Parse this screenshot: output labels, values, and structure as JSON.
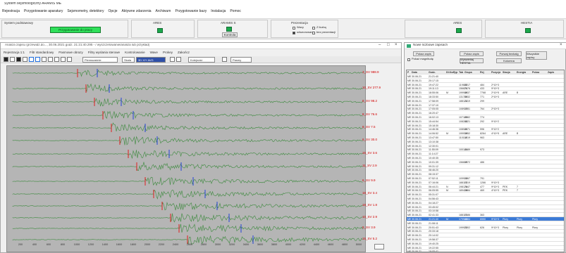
{
  "app": {
    "title": "System sejsmologiczny ARAMIS ME",
    "menu": [
      "Rejestracja",
      "Przygotowanie aparatury",
      "Sejsmometry, detektory",
      "Opcje",
      "Aktywne zdarzenia",
      "Archiwum",
      "Przygotowanie bazy",
      "Instalacja",
      "Pomoc"
    ]
  },
  "top_panel": {
    "groups": [
      {
        "title": "System podstawowy",
        "status": "Przygotowanie do pracy"
      },
      {
        "title": "ARES",
        "button": ""
      },
      {
        "title": "ARAMIS S",
        "button": "Kontrola"
      },
      {
        "title": "Prezentacja",
        "options": [
          "Wavy",
          "Z liczbą",
          "odwzorowanie",
          "bez prezentacji"
        ]
      },
      {
        "title": "ARES",
        "button": ""
      },
      {
        "title": "HESTIA",
        "button": ""
      }
    ]
  },
  "seismic_window": {
    "title": "Analiza zapisu (przewidz.do..., 30.06.2021 godz. 21:21:40.295 - / wyszczelowanie/analiza lub przyklad)",
    "menu": [
      "Rejestracja 1:1",
      "Filtr standardowy",
      "Pasmowe obrazy",
      "Filtry wyslania sterowe",
      "Kontrolowanie",
      "Wave",
      "Prokey",
      "Zakończ"
    ],
    "toolbar": {
      "field1": "Pierwszaśnie",
      "field2": "Skala",
      "field3": "3D X/Y AVG",
      "field4": "Kolejność",
      "field5": "Pasmy"
    },
    "traces": [
      {
        "label": "3_SV 988.9",
        "y": 42
      },
      {
        "label": "10_SV 277.9",
        "y": 64
      },
      {
        "label": "8_SV 98.2",
        "y": 83
      },
      {
        "label": "8_SV 76.6",
        "y": 102
      },
      {
        "label": "8_SV 7.5",
        "y": 120
      },
      {
        "label": "6_SV 30.0",
        "y": 138
      },
      {
        "label": "15_SV 3.6",
        "y": 157
      },
      {
        "label": "11_SV 2.9",
        "y": 175
      },
      {
        "label": "6_SV 9.9",
        "y": 196
      },
      {
        "label": "18_SV 3.4",
        "y": 214
      },
      {
        "label": "18_SV 1.8",
        "y": 231
      },
      {
        "label": "10_SV 2.9",
        "y": 248
      },
      {
        "label": "9_SV 3.9",
        "y": 263
      },
      {
        "label": "16_SV 5.2",
        "y": 279
      }
    ],
    "xaxis": [
      "200",
      "400",
      "600",
      "800",
      "1000",
      "1200",
      "1400",
      "1600",
      "1800",
      "2000",
      "2200",
      "2400",
      "2600",
      "2800",
      "3000",
      "3200",
      "3400",
      "3600",
      "3800",
      "4000",
      "4200",
      "4400",
      "4600",
      "4800",
      "5000"
    ]
  },
  "list_window": {
    "title": "Nowe liczbowe zapisach",
    "buttons": [
      "Pokaz zapis",
      "Pokaz zapis",
      "Porwaj bezkalg",
      "Pokaz na zapadre",
      "Pokaz zapis"
    ],
    "checkboxes": [
      "Pokaż magnitudę",
      "Wyświetlaj HESTIA",
      "Kolumna"
    ],
    "checkbox_right": "Wszystkie zapisy",
    "headers": [
      "P",
      "Data",
      "Godz.",
      "Dł.Kod",
      "Typ",
      "Tab",
      "Grupa",
      "Rej",
      "Pozycja",
      "Stacja",
      "Energia",
      "Pokaz",
      "Zapis"
    ],
    "rows": [
      [
        "ME",
        "30.06.21",
        "21:21:40",
        "",
        "",
        "",
        "",
        "",
        "",
        "",
        "",
        "",
        ""
      ],
      [
        "ME",
        "30.06.21",
        "20:17:15",
        "",
        "",
        "",
        "",
        "",
        "",
        "",
        "",
        "",
        ""
      ],
      [
        "ME",
        "30.06.21",
        "19:47:22",
        "",
        "",
        "119888",
        "2217",
        "484",
        "2*10^3",
        "",
        "",
        "",
        ""
      ],
      [
        "ME",
        "30.06.21",
        "19:11:13",
        "",
        "",
        "156876",
        "2176",
        "433",
        "9*10^3",
        "",
        "",
        "",
        ""
      ],
      [
        "ME",
        "30.06.21",
        "18:55:06",
        "M",
        "",
        "199946",
        "3937",
        "7768",
        "2*10^5",
        "ARE",
        "B",
        "",
        ""
      ],
      [
        "ME",
        "30.06.21",
        "18:33:50",
        "",
        "",
        "131788",
        "2932",
        "771",
        "2*10^3",
        "",
        "",
        "",
        ""
      ],
      [
        "ME",
        "30.06.21",
        "17:58:09",
        "",
        "",
        "188124",
        "2219",
        "299",
        "",
        "",
        "",
        "",
        ""
      ],
      [
        "ME",
        "30.06.21",
        "17:37:10",
        "",
        "",
        "",
        "",
        "",
        "",
        "",
        "",
        "",
        ""
      ],
      [
        "ME",
        "30.06.21",
        "17:05:05",
        "",
        "",
        "108927",
        "1681",
        "764",
        "2*10^3",
        "",
        "",
        "",
        ""
      ],
      [
        "ME",
        "30.06.21",
        "16:20:47",
        "",
        "",
        "",
        "",
        "",
        "",
        "",
        "",
        "",
        ""
      ],
      [
        "ME",
        "30.06.21",
        "16:02:13",
        "",
        "",
        "107186",
        "2382",
        "774",
        "",
        "",
        "",
        "",
        ""
      ],
      [
        "ME",
        "30.06.21",
        "15:44:54",
        "",
        "",
        "108248",
        "2221",
        "292",
        "9*10^2",
        "",
        "",
        "",
        ""
      ],
      [
        "ME",
        "30.06.21",
        "15:18:30",
        "",
        "",
        "",
        "",
        "",
        "",
        "",
        "",
        "",
        ""
      ],
      [
        "ME",
        "30.06.21",
        "14:46:36",
        "",
        "",
        "108046",
        "2071",
        "596",
        "9*10^2",
        "",
        "",
        "",
        ""
      ],
      [
        "ME",
        "30.06.21",
        "14:06:52",
        "M",
        "",
        "199919",
        "3652",
        "8264",
        "4*10^5",
        "ARE",
        "B",
        "",
        ""
      ],
      [
        "ME",
        "30.06.21",
        "13:47:50",
        "",
        "",
        "110118",
        "1819",
        "963",
        "",
        "",
        "",
        "",
        ""
      ],
      [
        "ME",
        "30.06.21",
        "13:10:38",
        "",
        "",
        "",
        "",
        "",
        "",
        "",
        "",
        "",
        ""
      ],
      [
        "ME",
        "30.06.21",
        "12:30:01",
        "",
        "",
        "",
        "",
        "",
        "",
        "",
        "",
        "",
        ""
      ],
      [
        "ME",
        "30.06.21",
        "11:55:09",
        "",
        "",
        "100146",
        "2189",
        "973",
        "",
        "",
        "",
        "",
        ""
      ],
      [
        "ME",
        "30.06.21",
        "11:14:27",
        "",
        "",
        "",
        "",
        "",
        "",
        "",
        "",
        "",
        ""
      ],
      [
        "ME",
        "30.06.21",
        "10:40:35",
        "",
        "",
        "",
        "",
        "",
        "",
        "",
        "",
        "",
        ""
      ],
      [
        "ME",
        "30.06.21",
        "10:01:39",
        "",
        "",
        "156605",
        "1972",
        "486",
        "",
        "",
        "",
        "",
        ""
      ],
      [
        "ME",
        "30.06.21",
        "09:31:12",
        "",
        "",
        "",
        "",
        "",
        "",
        "",
        "",
        "",
        ""
      ],
      [
        "ME",
        "30.06.21",
        "08:46:20",
        "",
        "",
        "",
        "",
        "",
        "",
        "",
        "",
        "",
        ""
      ],
      [
        "ME",
        "30.06.21",
        "08:15:37",
        "",
        "",
        "",
        "",
        "",
        "",
        "",
        "",
        "",
        ""
      ],
      [
        "ME",
        "30.06.21",
        "07:52:11",
        "",
        "",
        "109922",
        "1667",
        "791",
        "",
        "",
        "",
        "",
        ""
      ],
      [
        "ME",
        "30.06.21",
        "07:16:06",
        "",
        "",
        "188115",
        "2219",
        "1266",
        "9*10^3",
        "",
        "",
        "",
        ""
      ],
      [
        "ME",
        "30.06.21",
        "06:44:21",
        "N",
        "",
        "198174",
        "2847",
        "477",
        "9*10^3",
        "PEK",
        "7",
        "",
        ""
      ],
      [
        "ME",
        "30.06.21",
        "06:05:55",
        "M",
        "",
        "189416",
        "2884",
        "469",
        "4*10^3",
        "PEK",
        "7",
        "",
        ""
      ],
      [
        "ME",
        "30.06.21",
        "05:31:07",
        "",
        "",
        "",
        "",
        "",
        "",
        "",
        "",
        "",
        ""
      ],
      [
        "ME",
        "30.06.21",
        "04:56:43",
        "",
        "",
        "",
        "",
        "",
        "",
        "",
        "",
        "",
        ""
      ],
      [
        "ME",
        "30.06.21",
        "04:18:27",
        "",
        "",
        "",
        "",
        "",
        "",
        "",
        "",
        "",
        ""
      ],
      [
        "ME",
        "30.06.21",
        "03:45:02",
        "",
        "",
        "",
        "",
        "",
        "",
        "",
        "",
        "",
        ""
      ],
      [
        "ME",
        "30.06.21",
        "03:10:58",
        "",
        "",
        "",
        "",
        "",
        "",
        "",
        "",
        "",
        ""
      ],
      [
        "ME",
        "30.06.21",
        "02:41:33",
        "",
        "",
        "188115",
        "2186",
        "363",
        "",
        "",
        "",
        "",
        ""
      ],
      [
        "ME",
        "30.06.21",
        "21:21:40",
        "M",
        "",
        "179948",
        "2884",
        "6550",
        "9*10^3",
        "Pkey",
        "Pkey",
        "Pkey",
        ""
      ],
      [
        "ME",
        "30.06.21",
        "21:08:11",
        "",
        "",
        "",
        "",
        "",
        "",
        "",
        "",
        "",
        ""
      ],
      [
        "ME",
        "30.06.21",
        "20:51:43",
        "",
        "",
        "199922",
        "2002",
        "626",
        "9*10^3",
        "Pkey",
        "Pkey",
        "Pkey",
        ""
      ],
      [
        "ME",
        "30.06.21",
        "20:33:18",
        "",
        "",
        "",
        "",
        "",
        "",
        "",
        "",
        "",
        ""
      ],
      [
        "ME",
        "30.06.21",
        "20:14:02",
        "",
        "",
        "",
        "",
        "",
        "",
        "",
        "",
        "",
        ""
      ],
      [
        "ME",
        "30.06.21",
        "19:58:37",
        "",
        "",
        "",
        "",
        "",
        "",
        "",
        "",
        "",
        ""
      ],
      [
        "ME",
        "30.06.21",
        "19:40:25",
        "",
        "",
        "",
        "",
        "",
        "",
        "",
        "",
        "",
        ""
      ],
      [
        "ME",
        "30.06.21",
        "19:22:55",
        "",
        "",
        "",
        "",
        "",
        "",
        "",
        "",
        "",
        ""
      ],
      [
        "ME",
        "30.06.21",
        "19:05:41",
        "",
        "",
        "",
        "",
        "",
        "",
        "",
        "",
        "",
        ""
      ]
    ],
    "selected_row": 35
  }
}
